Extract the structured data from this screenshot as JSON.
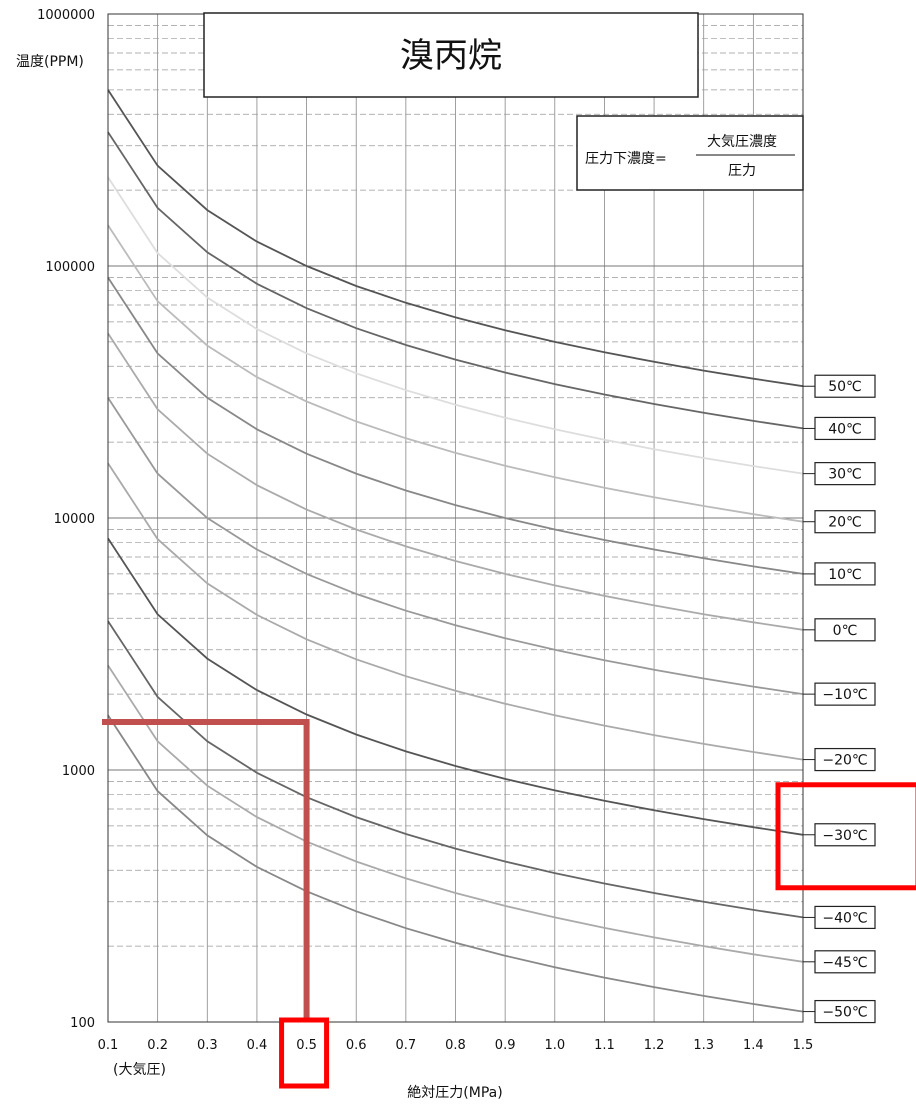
{
  "chart_data": {
    "type": "line",
    "title": "溴丙烷",
    "ylabel": "温度(PPM)",
    "xlabel": "絶対圧力(MPa)",
    "x_note": "(大気圧)",
    "formula": {
      "lhs": "圧力下濃度=",
      "numerator": "大気圧濃度",
      "denominator": "圧力"
    },
    "x_ticks": [
      "0.1",
      "0.2",
      "0.3",
      "0.4",
      "0.5",
      "0.6",
      "0.7",
      "0.8",
      "0.9",
      "1.0",
      "1.1",
      "1.2",
      "1.3",
      "1.4",
      "1.5"
    ],
    "y_ticks": [
      "100",
      "1000",
      "10000",
      "100000",
      "1000000"
    ],
    "xlim": [
      0.1,
      1.5
    ],
    "ylim": [
      100,
      1000000
    ],
    "yscale": "log",
    "grid": true,
    "x": [
      0.1,
      0.2,
      0.3,
      0.4,
      0.5,
      0.6,
      0.7,
      0.8,
      0.9,
      1.0,
      1.1,
      1.2,
      1.3,
      1.4,
      1.5
    ],
    "series": [
      {
        "name": "50℃",
        "color": "#555555",
        "atm_value": 500000
      },
      {
        "name": "40℃",
        "color": "#666666",
        "atm_value": 340000
      },
      {
        "name": "30℃",
        "color": "#dddddd",
        "atm_value": 225000
      },
      {
        "name": "20℃",
        "color": "#bbbbbb",
        "atm_value": 145000
      },
      {
        "name": "10℃",
        "color": "#888888",
        "atm_value": 90000
      },
      {
        "name": "0℃",
        "color": "#aaaaaa",
        "atm_value": 54000
      },
      {
        "name": "−10℃",
        "color": "#999999",
        "atm_value": 30000
      },
      {
        "name": "−20℃",
        "color": "#aaaaaa",
        "atm_value": 16500
      },
      {
        "name": "−30℃",
        "color": "#555555",
        "atm_value": 8300
      },
      {
        "name": "−40℃",
        "color": "#666666",
        "atm_value": 3900
      },
      {
        "name": "−45℃",
        "color": "#aaaaaa",
        "atm_value": 2600
      },
      {
        "name": "−50℃",
        "color": "#888888",
        "atm_value": 1650
      }
    ],
    "annotations": [
      {
        "kind": "reading-line",
        "color": "#c0504d",
        "x": 0.5,
        "y": 1550
      },
      {
        "kind": "highlight-box",
        "color": "#ff0000",
        "target": "x-tick",
        "value": "0.5"
      },
      {
        "kind": "highlight-box",
        "color": "#ff0000",
        "target": "series-label",
        "value": "−30℃"
      }
    ]
  }
}
